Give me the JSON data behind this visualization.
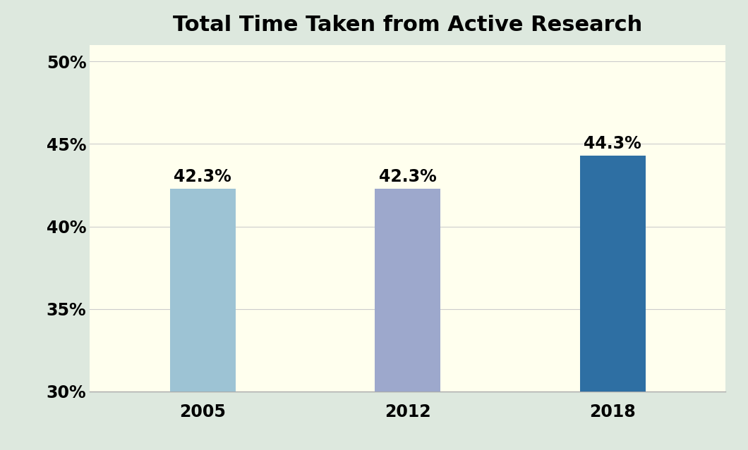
{
  "title": "Total Time Taken from Active Research",
  "categories": [
    "2005",
    "2012",
    "2018"
  ],
  "values": [
    42.3,
    42.3,
    44.3
  ],
  "bar_colors": [
    "#9dc3d4",
    "#9da8cc",
    "#2e6fa3"
  ],
  "bar_labels": [
    "42.3%",
    "42.3%",
    "44.3%"
  ],
  "ylim": [
    30,
    51
  ],
  "yticks": [
    30,
    35,
    40,
    45,
    50
  ],
  "ytick_labels": [
    "30%",
    "35%",
    "40%",
    "45%",
    "50%"
  ],
  "title_fontsize": 22,
  "tick_fontsize": 17,
  "label_fontsize": 17,
  "figure_bg": "#dde8de",
  "plot_bg": "#ffffee",
  "bar_width": 0.32,
  "x_positions": [
    0,
    1,
    2
  ],
  "xlim": [
    -0.55,
    2.55
  ]
}
